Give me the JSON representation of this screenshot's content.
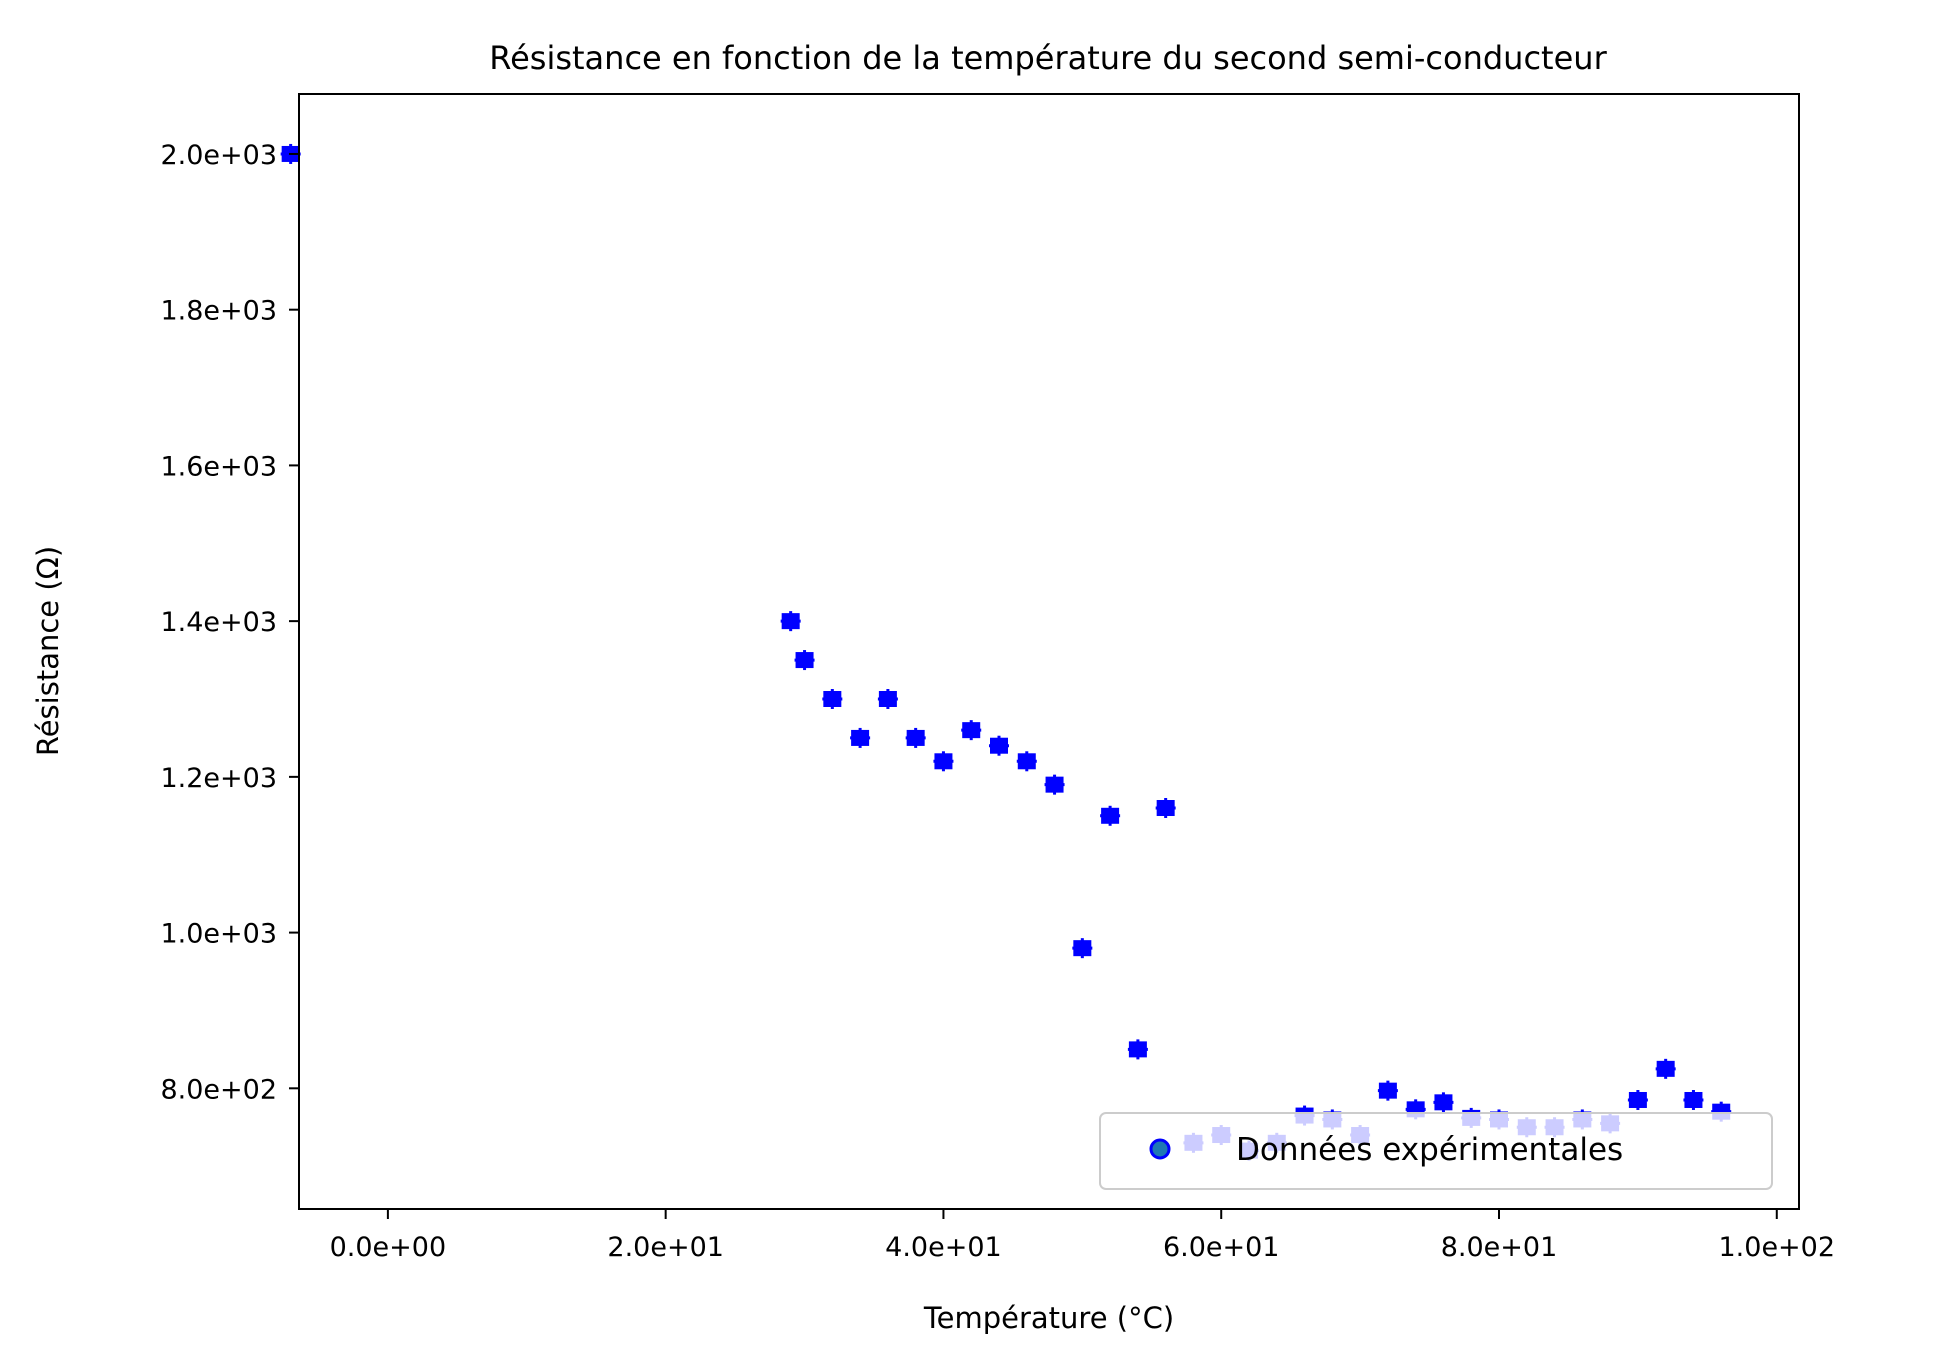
{
  "chart_data": {
    "type": "scatter",
    "title": "Résistance en fonction de la température du second semi-conducteur",
    "xlabel": "Température (°C)",
    "ylabel": "Résistance (Ω)",
    "xlim": [
      -6.4,
      101.6
    ],
    "ylim": [
      645,
      2077
    ],
    "x_ticks": [
      0,
      20,
      40,
      60,
      80,
      100
    ],
    "x_tick_labels": [
      "0.0e+00",
      "2.0e+01",
      "4.0e+01",
      "6.0e+01",
      "8.0e+01",
      "1.0e+02"
    ],
    "y_ticks": [
      800,
      1000,
      1200,
      1400,
      1600,
      1800,
      2000
    ],
    "y_tick_labels": [
      "8.0e+02",
      "1.0e+03",
      "1.2e+03",
      "1.4e+03",
      "1.6e+03",
      "1.8e+03",
      "2.0e+03"
    ],
    "grid": false,
    "legend": {
      "entries": [
        "Données expérimentales"
      ],
      "position": "lower right"
    },
    "marker_color": "#0000ff",
    "series": [
      {
        "name": "Données expérimentales",
        "points": [
          {
            "x": -7,
            "y": 2000
          },
          {
            "x": 29,
            "y": 1400
          },
          {
            "x": 30,
            "y": 1350
          },
          {
            "x": 32,
            "y": 1300
          },
          {
            "x": 34,
            "y": 1250
          },
          {
            "x": 36,
            "y": 1300
          },
          {
            "x": 38,
            "y": 1250
          },
          {
            "x": 40,
            "y": 1220
          },
          {
            "x": 42,
            "y": 1260
          },
          {
            "x": 44,
            "y": 1240
          },
          {
            "x": 46,
            "y": 1220
          },
          {
            "x": 48,
            "y": 1190
          },
          {
            "x": 50,
            "y": 980
          },
          {
            "x": 52,
            "y": 1150
          },
          {
            "x": 54,
            "y": 850
          },
          {
            "x": 56,
            "y": 1160
          },
          {
            "x": 58,
            "y": 730
          },
          {
            "x": 60,
            "y": 740
          },
          {
            "x": 62,
            "y": 720
          },
          {
            "x": 64,
            "y": 730
          },
          {
            "x": 66,
            "y": 765
          },
          {
            "x": 68,
            "y": 760
          },
          {
            "x": 70,
            "y": 740
          },
          {
            "x": 72,
            "y": 797
          },
          {
            "x": 74,
            "y": 773
          },
          {
            "x": 76,
            "y": 782
          },
          {
            "x": 78,
            "y": 762
          },
          {
            "x": 80,
            "y": 760
          },
          {
            "x": 82,
            "y": 750
          },
          {
            "x": 84,
            "y": 750
          },
          {
            "x": 86,
            "y": 760
          },
          {
            "x": 88,
            "y": 755
          },
          {
            "x": 90,
            "y": 785
          },
          {
            "x": 92,
            "y": 825
          },
          {
            "x": 94,
            "y": 785
          },
          {
            "x": 96,
            "y": 770
          }
        ]
      }
    ]
  }
}
